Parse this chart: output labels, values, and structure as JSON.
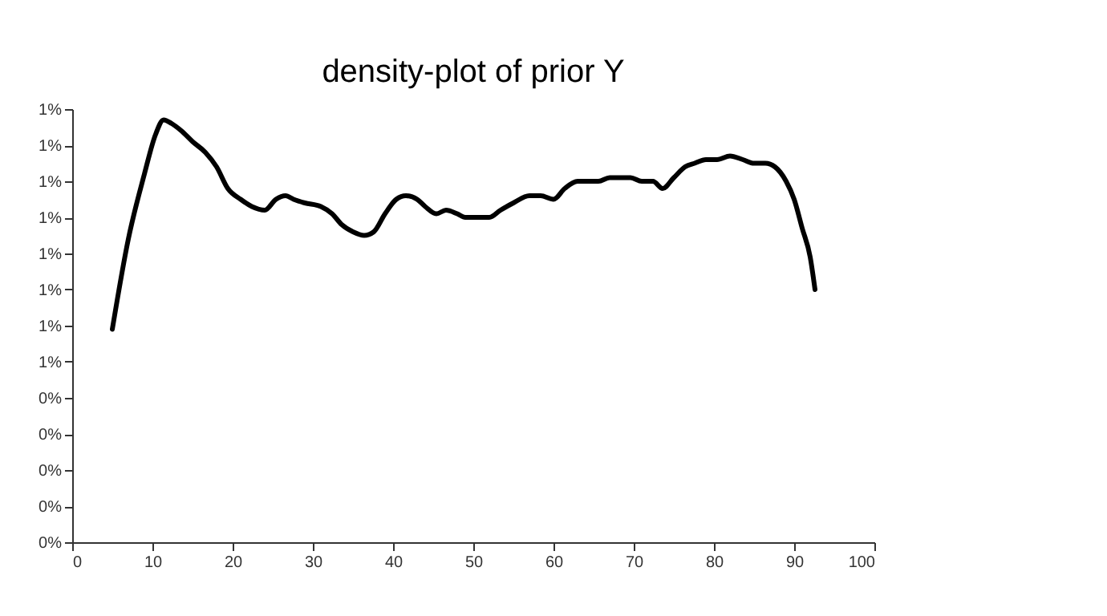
{
  "chart_data": {
    "type": "line",
    "title": "density-plot of prior Y",
    "x": [
      5,
      7,
      9,
      10.4,
      11.4,
      12.4,
      13.6,
      15,
      16.6,
      18,
      19.4,
      21,
      22.4,
      24,
      25.4,
      26.6,
      27.6,
      29,
      31,
      32.4,
      33.6,
      35,
      36.4,
      37.6,
      39,
      40.4,
      41.6,
      43,
      44,
      45.4,
      46.6,
      48,
      49,
      50.4,
      52,
      53.4,
      55,
      57,
      58.4,
      60,
      61.4,
      63,
      64.4,
      65.6,
      67,
      68.4,
      69.6,
      71,
      72.4,
      73.6,
      75,
      76.4,
      77.6,
      79,
      80.4,
      82,
      83.6,
      85,
      86.4,
      87.6,
      89,
      90,
      91,
      92,
      92.6
    ],
    "series": [
      {
        "color": "#000000",
        "values": [
          0.0059,
          0.0084,
          0.0102,
          0.0113,
          0.0117,
          0.0116,
          0.0114,
          0.0111,
          0.0108,
          0.0104,
          0.0098,
          0.0095,
          0.0093,
          0.0092,
          0.0095,
          0.0096,
          0.0095,
          0.0094,
          0.0093,
          0.0091,
          0.0088,
          0.0086,
          0.0085,
          0.0086,
          0.0091,
          0.0095,
          0.0096,
          0.0095,
          0.0093,
          0.0091,
          0.0092,
          0.0091,
          0.009,
          0.009,
          0.009,
          0.0092,
          0.0094,
          0.0096,
          0.0096,
          0.0095,
          0.0098,
          0.01,
          0.01,
          0.01,
          0.0101,
          0.0101,
          0.0101,
          0.01,
          0.01,
          0.0098,
          0.0101,
          0.0104,
          0.0105,
          0.0106,
          0.0106,
          0.0107,
          0.0106,
          0.0105,
          0.0105,
          0.0104,
          0.01,
          0.0095,
          0.0087,
          0.0079,
          0.007
        ]
      }
    ],
    "xlim": [
      0,
      100
    ],
    "xticks": [
      0,
      10,
      20,
      30,
      40,
      50,
      60,
      70,
      80,
      90,
      100
    ],
    "ylim": [
      0,
      0.012
    ],
    "yticks": [
      {
        "value": 0,
        "label": "0%"
      },
      {
        "value": 0.001,
        "label": "0%"
      },
      {
        "value": 0.002,
        "label": "0%"
      },
      {
        "value": 0.003,
        "label": "0%"
      },
      {
        "value": 0.004,
        "label": "0%"
      },
      {
        "value": 0.005,
        "label": "1%"
      },
      {
        "value": 0.006,
        "label": "1%"
      },
      {
        "value": 0.007,
        "label": "1%"
      },
      {
        "value": 0.008,
        "label": "1%"
      },
      {
        "value": 0.009,
        "label": "1%"
      },
      {
        "value": 0.01,
        "label": "1%"
      },
      {
        "value": 0.011,
        "label": "1%"
      },
      {
        "value": 0.012,
        "label": "1%"
      }
    ],
    "grid": false,
    "marker": "none",
    "line_style": "solid"
  }
}
